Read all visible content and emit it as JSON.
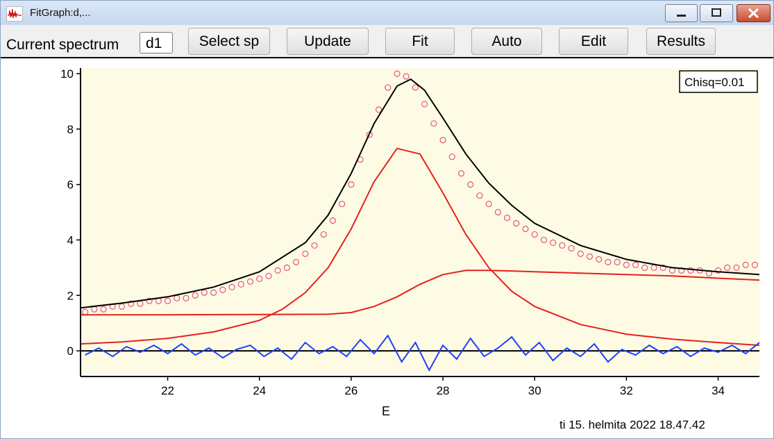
{
  "window": {
    "title": "FitGraph:d,..."
  },
  "toolbar": {
    "current_label": "Current spectrum",
    "current_value": "d1",
    "buttons": [
      "Select sp",
      "Update",
      "Fit",
      "Auto",
      "Edit",
      "Results"
    ]
  },
  "plot": {
    "chisq": "Chisq=0.01",
    "timestamp": "ti 15. helmita 2022 18.47.42"
  },
  "chart_data": {
    "type": "scatter",
    "xlabel": "E",
    "xlim": [
      20.1,
      34.9
    ],
    "ylim": [
      -0.85,
      10.2
    ],
    "xticks": [
      22,
      24,
      26,
      28,
      30,
      32,
      34
    ],
    "yticks": [
      0,
      2,
      4,
      6,
      8,
      10
    ],
    "grid": false,
    "legend": "none",
    "colors": {
      "background": "#fdfbe4",
      "data_points": "#e8527f",
      "fit_total": "#000000",
      "components": "#e81e1e",
      "residual": "#1f3fff"
    },
    "series": [
      {
        "role": "data",
        "x": [
          20.2,
          20.4,
          20.6,
          20.8,
          21.0,
          21.2,
          21.4,
          21.6,
          21.8,
          22.0,
          22.2,
          22.4,
          22.6,
          22.8,
          23.0,
          23.2,
          23.4,
          23.6,
          23.8,
          24.0,
          24.2,
          24.4,
          24.6,
          24.8,
          25.0,
          25.2,
          25.4,
          25.6,
          25.8,
          26.0,
          26.2,
          26.4,
          26.6,
          26.8,
          27.0,
          27.2,
          27.4,
          27.6,
          27.8,
          28.0,
          28.2,
          28.4,
          28.6,
          28.8,
          29.0,
          29.2,
          29.4,
          29.6,
          29.8,
          30.0,
          30.2,
          30.4,
          30.6,
          30.8,
          31.0,
          31.2,
          31.4,
          31.6,
          31.8,
          32.0,
          32.2,
          32.4,
          32.6,
          32.8,
          33.0,
          33.2,
          33.4,
          33.6,
          33.8,
          34.0,
          34.2,
          34.4,
          34.6,
          34.8
        ],
        "y": [
          1.4,
          1.5,
          1.5,
          1.6,
          1.6,
          1.7,
          1.7,
          1.8,
          1.8,
          1.8,
          1.9,
          1.9,
          2.0,
          2.1,
          2.1,
          2.2,
          2.3,
          2.4,
          2.5,
          2.6,
          2.7,
          2.9,
          3.0,
          3.2,
          3.5,
          3.8,
          4.2,
          4.7,
          5.3,
          6.0,
          6.9,
          7.8,
          8.7,
          9.5,
          10.0,
          9.9,
          9.5,
          8.9,
          8.2,
          7.6,
          7.0,
          6.4,
          6.0,
          5.6,
          5.3,
          5.0,
          4.8,
          4.6,
          4.4,
          4.2,
          4.0,
          3.9,
          3.8,
          3.7,
          3.5,
          3.4,
          3.3,
          3.2,
          3.2,
          3.1,
          3.1,
          3.0,
          3.0,
          3.0,
          2.9,
          2.9,
          2.9,
          2.9,
          2.8,
          2.9,
          3.0,
          3.0,
          3.1,
          3.1
        ]
      },
      {
        "role": "fit",
        "x": [
          20.1,
          21.0,
          22.0,
          23.0,
          24.0,
          25.0,
          25.5,
          26.0,
          26.5,
          27.0,
          27.3,
          27.6,
          28.0,
          28.5,
          29.0,
          29.5,
          30.0,
          31.0,
          32.0,
          33.0,
          34.0,
          34.9
        ],
        "y": [
          1.55,
          1.72,
          1.95,
          2.3,
          2.85,
          3.9,
          4.9,
          6.4,
          8.2,
          9.55,
          9.8,
          9.4,
          8.4,
          7.1,
          6.05,
          5.25,
          4.6,
          3.8,
          3.3,
          3.0,
          2.85,
          2.75
        ]
      },
      {
        "role": "component",
        "x": [
          20.1,
          21.0,
          22.0,
          23.0,
          24.0,
          24.5,
          25.0,
          25.5,
          26.0,
          26.5,
          27.0,
          27.5,
          28.0,
          28.5,
          29.0,
          29.5,
          30.0,
          31.0,
          32.0,
          33.0,
          34.0,
          34.9
        ],
        "y": [
          0.25,
          0.32,
          0.45,
          0.68,
          1.1,
          1.5,
          2.1,
          3.0,
          4.4,
          6.1,
          7.3,
          7.1,
          5.7,
          4.2,
          3.0,
          2.15,
          1.6,
          0.95,
          0.6,
          0.42,
          0.3,
          0.2
        ]
      },
      {
        "role": "component",
        "x": [
          20.1,
          22.0,
          24.0,
          25.5,
          26.0,
          26.5,
          27.0,
          27.5,
          28.0,
          28.5,
          29.0,
          29.5,
          30.0,
          31.0,
          32.0,
          33.0,
          34.0,
          34.9
        ],
        "y": [
          1.3,
          1.3,
          1.31,
          1.32,
          1.38,
          1.6,
          1.95,
          2.4,
          2.75,
          2.9,
          2.9,
          2.88,
          2.85,
          2.8,
          2.75,
          2.7,
          2.62,
          2.55
        ]
      },
      {
        "role": "residual",
        "x": [
          20.2,
          20.5,
          20.8,
          21.1,
          21.4,
          21.7,
          22.0,
          22.3,
          22.6,
          22.9,
          23.2,
          23.5,
          23.8,
          24.1,
          24.4,
          24.7,
          25.0,
          25.3,
          25.6,
          25.9,
          26.2,
          26.5,
          26.8,
          27.1,
          27.4,
          27.7,
          28.0,
          28.3,
          28.6,
          28.9,
          29.2,
          29.5,
          29.8,
          30.1,
          30.4,
          30.7,
          31.0,
          31.3,
          31.6,
          31.9,
          32.2,
          32.5,
          32.8,
          33.1,
          33.4,
          33.7,
          34.0,
          34.3,
          34.6,
          34.9
        ],
        "y": [
          -0.15,
          0.1,
          -0.2,
          0.15,
          -0.05,
          0.2,
          -0.1,
          0.25,
          -0.15,
          0.1,
          -0.25,
          0.05,
          0.2,
          -0.2,
          0.1,
          -0.3,
          0.3,
          -0.1,
          0.15,
          -0.2,
          0.4,
          -0.1,
          0.55,
          -0.4,
          0.3,
          -0.7,
          0.2,
          -0.3,
          0.45,
          -0.2,
          0.1,
          0.5,
          -0.15,
          0.3,
          -0.35,
          0.1,
          -0.2,
          0.25,
          -0.4,
          0.05,
          -0.15,
          0.2,
          -0.1,
          0.15,
          -0.2,
          0.1,
          -0.05,
          0.2,
          -0.1,
          0.3
        ]
      }
    ]
  }
}
